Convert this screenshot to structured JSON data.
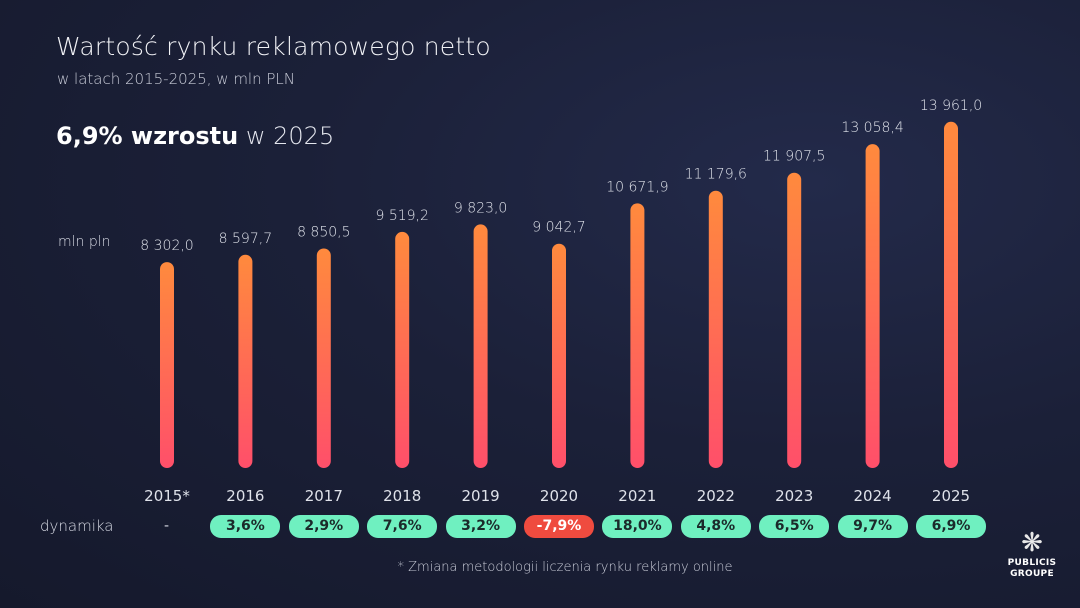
{
  "title": "Wartość rynku reklamowego netto",
  "subtitle": "w latach 2015-2025, w mln PLN",
  "headline": {
    "bold": "6,9% wzrostu",
    "rest": "w 2025"
  },
  "unit_label": "mln pln",
  "dynamics_label": "dynamika",
  "footnote": "* Zmiana metodologii liczenia rynku reklamy online",
  "logo": {
    "line1": "PUBLICIS",
    "line2": "GROUPE"
  },
  "colors": {
    "bar_top": "#ff8a3d",
    "bar_bottom": "#ff4f6a",
    "positive": "#6ff0c0",
    "negative": "#ef4b3f"
  },
  "chart_data": {
    "type": "bar",
    "title": "Wartość rynku reklamowego netto",
    "ylabel": "mln pln",
    "ylim": [
      0,
      14500
    ],
    "categories": [
      "2015*",
      "2016",
      "2017",
      "2018",
      "2019",
      "2020",
      "2021",
      "2022",
      "2023",
      "2024",
      "2025"
    ],
    "values": [
      8302.0,
      8597.7,
      8850.5,
      9519.2,
      9823.0,
      9042.7,
      10671.9,
      11179.6,
      11907.5,
      13058.4,
      13961.0
    ],
    "value_labels": [
      "8 302,0",
      "8 597,7",
      "8 850,5",
      "9 519,2",
      "9 823,0",
      "9 042,7",
      "10 671,9",
      "11 179,6",
      "11 907,5",
      "13 058,4",
      "13 961,0"
    ],
    "dynamics": [
      "-",
      "3,6%",
      "2,9%",
      "7,6%",
      "3,2%",
      "-7,9%",
      "18,0%",
      "4,8%",
      "6,5%",
      "9,7%",
      "6,9%"
    ]
  }
}
